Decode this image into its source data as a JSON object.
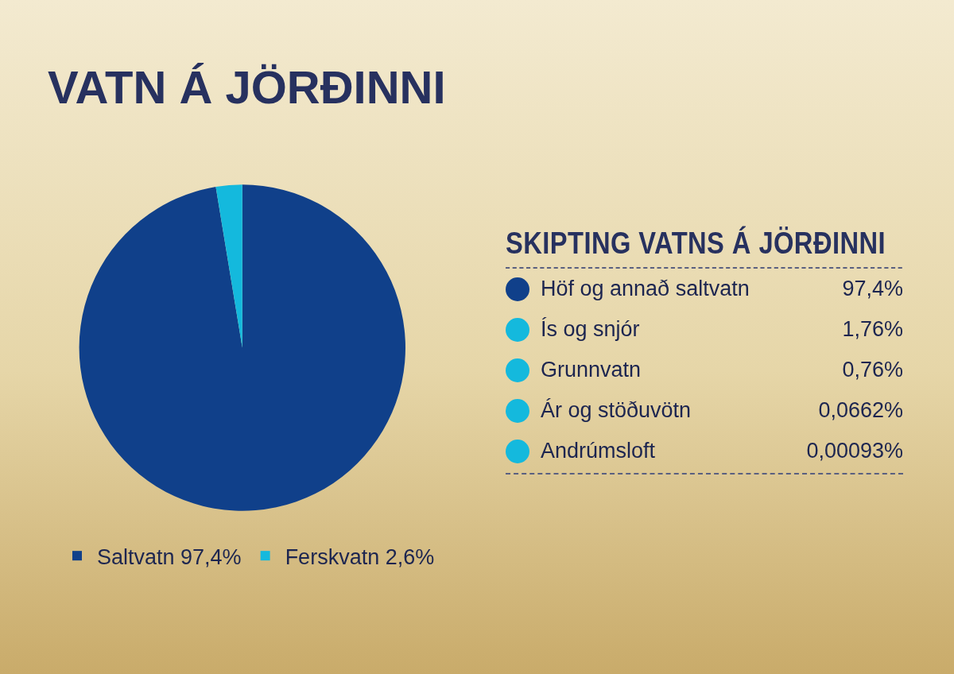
{
  "chart_data": [
    {
      "type": "pie",
      "title": "VATN Á JÖRÐINNI",
      "categories": [
        "Saltvatn",
        "Ferskvatn"
      ],
      "values": [
        97.4,
        2.6
      ],
      "value_labels": [
        "97,4%",
        "2,6%"
      ],
      "colors": [
        "#10408a",
        "#14b9dd"
      ],
      "legend": "bottom"
    },
    {
      "type": "other",
      "title": "SKIPTING VATNS Á JÖRÐINNI",
      "categories": [
        "Höf og annað saltvatn",
        "Ís og snjór",
        "Grunnvatn",
        "Ár og stöðuvötn",
        "Andrúmsloft"
      ],
      "value_labels": [
        "97,4%",
        "1,76%",
        "0,76%",
        "0,0662%",
        "0,00093%"
      ],
      "colors": [
        "#10408a",
        "#14b9dd",
        "#14b9dd",
        "#14b9dd",
        "#14b9dd"
      ]
    }
  ]
}
